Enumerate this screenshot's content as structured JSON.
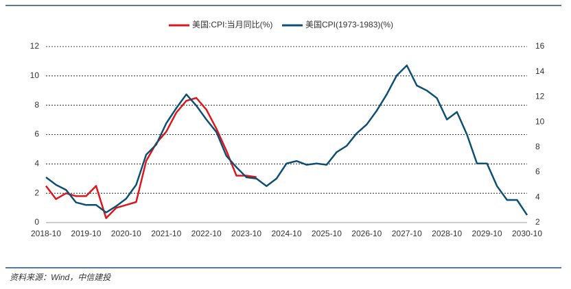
{
  "chart_data": {
    "type": "line",
    "source": "资料来源：Wind，中信建投",
    "x": [
      "2018-10",
      "2019-01",
      "2019-04",
      "2019-07",
      "2019-10",
      "2020-01",
      "2020-04",
      "2020-07",
      "2020-10",
      "2021-01",
      "2021-04",
      "2021-07",
      "2021-10",
      "2022-01",
      "2022-04",
      "2022-07",
      "2022-10",
      "2023-01",
      "2023-04",
      "2023-07",
      "2023-10",
      "2024-01",
      "2024-04",
      "2024-07",
      "2024-10",
      "2025-01",
      "2025-04",
      "2025-07",
      "2025-10",
      "2026-01",
      "2026-04",
      "2026-07",
      "2026-10",
      "2027-01",
      "2027-04",
      "2027-07",
      "2027-10",
      "2028-01",
      "2028-04",
      "2028-07",
      "2028-10",
      "2029-01",
      "2029-04",
      "2029-07",
      "2029-10",
      "2030-01",
      "2030-04",
      "2030-07",
      "2030-10"
    ],
    "xticks": [
      "2018-10",
      "2019-10",
      "2020-10",
      "2021-10",
      "2022-10",
      "2023-10",
      "2024-10",
      "2025-10",
      "2026-10",
      "2027-10",
      "2028-10",
      "2029-10",
      "2030-10"
    ],
    "series": [
      {
        "name": "美国:CPI:当月同比(%)",
        "color": "#e0151b",
        "values": [
          2.5,
          1.6,
          2.0,
          1.8,
          1.8,
          2.5,
          0.3,
          1.0,
          1.2,
          1.4,
          4.2,
          5.4,
          6.2,
          7.5,
          8.3,
          8.5,
          7.7,
          6.4,
          4.9,
          3.2,
          3.2,
          3.1,
          null,
          null,
          null,
          null,
          null,
          null,
          null,
          null,
          null,
          null,
          null,
          null,
          null,
          null,
          null,
          null,
          null,
          null,
          null,
          null,
          null,
          null,
          null,
          null,
          null,
          null,
          null
        ]
      },
      {
        "name": "美国CPI(1973-1983)(%)",
        "color": "#0d4f73",
        "axis": "y2",
        "values": [
          5.6,
          5.0,
          4.6,
          3.6,
          3.4,
          3.4,
          2.8,
          3.3,
          3.9,
          5.0,
          7.4,
          8.2,
          9.9,
          11.1,
          12.2,
          11.3,
          10.2,
          9.2,
          7.3,
          6.4,
          5.6,
          5.5,
          4.9,
          5.5,
          6.7,
          6.9,
          6.6,
          6.7,
          6.6,
          7.6,
          8.1,
          9.1,
          9.8,
          10.9,
          12.2,
          13.7,
          14.5,
          12.9,
          12.5,
          11.9,
          10.2,
          10.8,
          9.0,
          6.7,
          6.7,
          4.9,
          3.8,
          3.8,
          2.6
        ]
      }
    ],
    "ylim": [
      0,
      12
    ],
    "yticks": [
      0,
      2,
      4,
      6,
      8,
      10,
      12
    ],
    "y2lim": [
      2,
      16
    ],
    "y2ticks": [
      2,
      4,
      6,
      8,
      10,
      12,
      14,
      16
    ],
    "grid": true
  }
}
